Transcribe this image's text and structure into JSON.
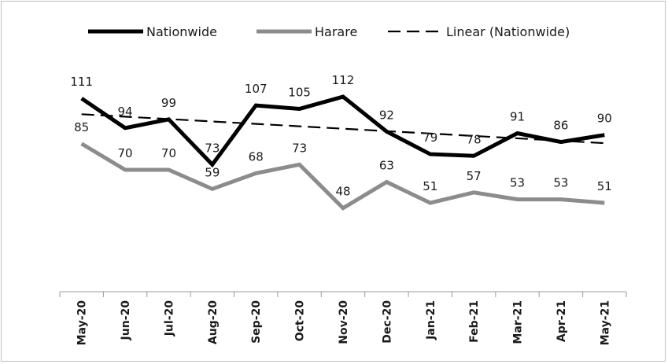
{
  "chart_data": {
    "type": "line",
    "categories": [
      "May-20",
      "Jun-20",
      "Jul-20",
      "Aug-20",
      "Sep-20",
      "Oct-20",
      "Nov-20",
      "Dec-20",
      "Jan-21",
      "Feb-21",
      "Mar-21",
      "Apr-21",
      "May-21"
    ],
    "series": [
      {
        "name": "Nationwide",
        "values": [
          111,
          94,
          99,
          73,
          107,
          105,
          112,
          92,
          79,
          78,
          91,
          86,
          90
        ],
        "color": "#000000"
      },
      {
        "name": "Harare",
        "values": [
          85,
          70,
          70,
          59,
          68,
          73,
          48,
          63,
          51,
          57,
          53,
          53,
          51
        ],
        "color": "#8c8c8c"
      }
    ],
    "trendline": {
      "name": "Linear (Nationwide)",
      "of_series": "Nationwide",
      "style": "dashed",
      "color": "#000000"
    },
    "title": "",
    "xlabel": "",
    "ylabel": "",
    "ylim": [
      0,
      140
    ],
    "grid": false,
    "y_axis_visible": false,
    "legend_position": "top"
  }
}
